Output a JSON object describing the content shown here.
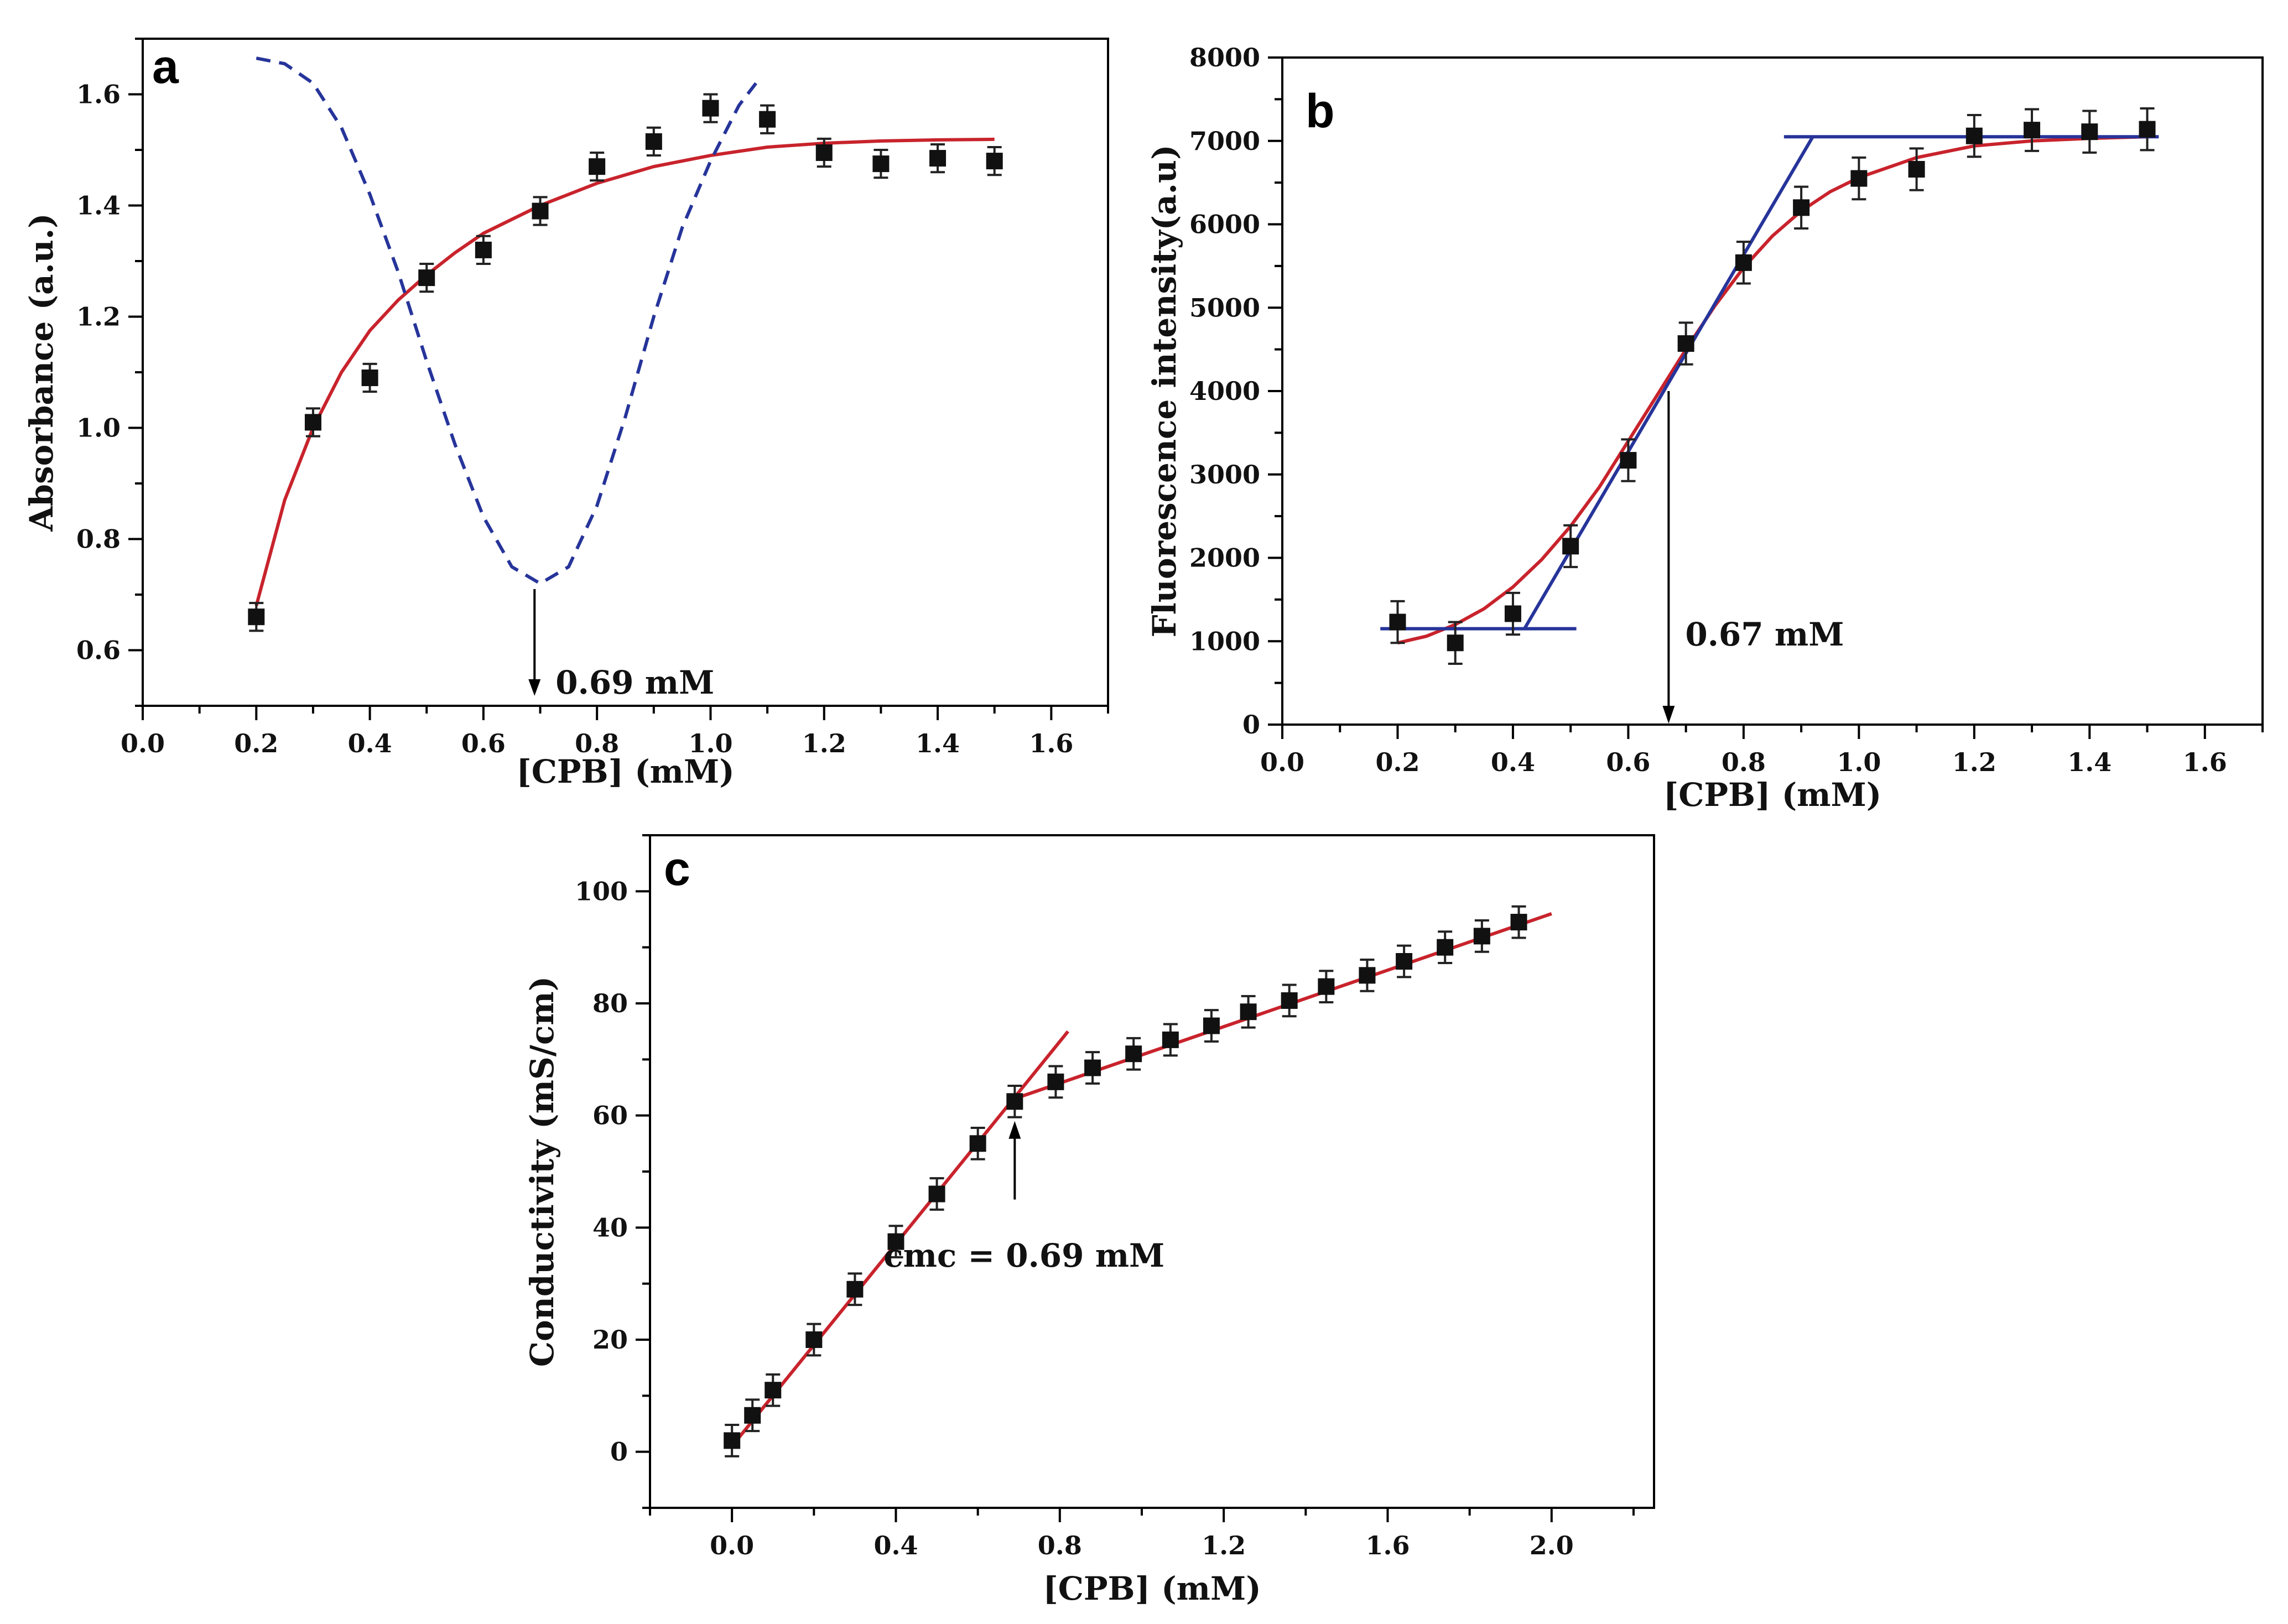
{
  "chart_data": [
    {
      "type": "scatter",
      "panel": "a",
      "xlabel": "[CPB] (mM)",
      "ylabel": "Absorbance (a.u.)",
      "xlim": [
        0.0,
        1.7
      ],
      "ylim": [
        0.5,
        1.7
      ],
      "xticks": [
        "0.0",
        "0.2",
        "0.4",
        "0.6",
        "0.8",
        "1.0",
        "1.2",
        "1.4",
        "1.6"
      ],
      "yticks": [
        "0.6",
        "0.8",
        "1.0",
        "1.2",
        "1.4",
        "1.6"
      ],
      "series": [
        {
          "name": "Absorbance",
          "marker": "square",
          "x": [
            0.2,
            0.3,
            0.4,
            0.5,
            0.6,
            0.7,
            0.8,
            0.9,
            1.0,
            1.1,
            1.2,
            1.3,
            1.4,
            1.5
          ],
          "values": [
            0.66,
            1.01,
            1.09,
            1.27,
            1.32,
            1.39,
            1.47,
            1.515,
            1.575,
            1.555,
            1.495,
            1.475,
            1.485,
            1.48
          ],
          "error": 0.025
        }
      ],
      "fit_lines": [
        {
          "name": "fit",
          "color": "#c8232c",
          "style": "solid",
          "x": [
            0.2,
            0.25,
            0.3,
            0.35,
            0.4,
            0.45,
            0.5,
            0.55,
            0.6,
            0.65,
            0.7,
            0.8,
            0.9,
            1.0,
            1.1,
            1.2,
            1.3,
            1.4,
            1.5
          ],
          "y": [
            0.68,
            0.87,
            1.0,
            1.1,
            1.175,
            1.23,
            1.275,
            1.315,
            1.35,
            1.375,
            1.4,
            1.44,
            1.47,
            1.49,
            1.505,
            1.512,
            1.516,
            1.518,
            1.519
          ]
        },
        {
          "name": "derivative",
          "color": "#26349a",
          "style": "dashed",
          "x": [
            0.2,
            0.25,
            0.3,
            0.35,
            0.4,
            0.45,
            0.5,
            0.55,
            0.6,
            0.65,
            0.7,
            0.75,
            0.8,
            0.85,
            0.9,
            0.95,
            1.0,
            1.05,
            1.08
          ],
          "y": [
            1.665,
            1.655,
            1.62,
            1.54,
            1.42,
            1.28,
            1.12,
            0.97,
            0.84,
            0.75,
            0.72,
            0.75,
            0.86,
            1.02,
            1.2,
            1.36,
            1.48,
            1.58,
            1.62
          ]
        }
      ],
      "annotation": {
        "text": "0.69 mM",
        "x": 0.69,
        "arrow_from": 0.71,
        "arrow_to": 0.5
      }
    },
    {
      "type": "scatter",
      "panel": "b",
      "xlabel": "[CPB] (mM)",
      "ylabel": "Fluorescence intensity(a.u)",
      "xlim": [
        0.0,
        1.7
      ],
      "ylim": [
        0,
        8000
      ],
      "xticks": [
        "0.0",
        "0.2",
        "0.4",
        "0.6",
        "0.8",
        "1.0",
        "1.2",
        "1.4",
        "1.6"
      ],
      "yticks": [
        "0",
        "1000",
        "2000",
        "3000",
        "4000",
        "5000",
        "6000",
        "7000",
        "8000"
      ],
      "series": [
        {
          "name": "Fluorescence",
          "marker": "square",
          "x": [
            0.2,
            0.3,
            0.4,
            0.5,
            0.6,
            0.7,
            0.8,
            0.9,
            1.0,
            1.1,
            1.2,
            1.3,
            1.4,
            1.5
          ],
          "values": [
            1230,
            980,
            1330,
            2140,
            3170,
            4570,
            5540,
            6200,
            6550,
            6660,
            7060,
            7130,
            7110,
            7140
          ],
          "error": 250
        }
      ],
      "fit_lines": [
        {
          "name": "sigmoid fit",
          "color": "#c8232c",
          "style": "solid",
          "x": [
            0.2,
            0.25,
            0.3,
            0.35,
            0.4,
            0.45,
            0.5,
            0.55,
            0.6,
            0.65,
            0.7,
            0.75,
            0.8,
            0.85,
            0.9,
            0.95,
            1.0,
            1.1,
            1.2,
            1.3,
            1.4,
            1.5
          ],
          "y": [
            980,
            1060,
            1200,
            1390,
            1650,
            1980,
            2380,
            2850,
            3400,
            3950,
            4500,
            5020,
            5480,
            5860,
            6160,
            6390,
            6560,
            6800,
            6940,
            7000,
            7030,
            7050
          ]
        },
        {
          "name": "low baseline",
          "color": "#26349a",
          "style": "solid",
          "x": [
            0.17,
            0.51
          ],
          "y": [
            1150,
            1150
          ]
        },
        {
          "name": "rising tangent",
          "color": "#26349a",
          "style": "solid",
          "x": [
            0.42,
            0.92
          ],
          "y": [
            1150,
            7050
          ]
        },
        {
          "name": "high plateau",
          "color": "#26349a",
          "style": "solid",
          "x": [
            0.87,
            1.52
          ],
          "y": [
            7050,
            7050
          ]
        }
      ],
      "annotation": {
        "text": "0.67 mM",
        "x": 0.67,
        "arrow_from": 4000,
        "arrow_to": 0
      }
    },
    {
      "type": "scatter",
      "panel": "c",
      "xlabel": "[CPB] (mM)",
      "ylabel": "Conductivity (mS/cm)",
      "xlim": [
        -0.2,
        2.25
      ],
      "ylim": [
        -10,
        110
      ],
      "xticks": [
        "0.0",
        "0.4",
        "0.8",
        "1.2",
        "1.6",
        "2.0"
      ],
      "yticks": [
        "0",
        "20",
        "40",
        "60",
        "80",
        "100"
      ],
      "series": [
        {
          "name": "Conductivity",
          "marker": "square",
          "x": [
            0.0,
            0.05,
            0.1,
            0.2,
            0.3,
            0.4,
            0.5,
            0.6,
            0.69,
            0.79,
            0.88,
            0.98,
            1.07,
            1.17,
            1.26,
            1.36,
            1.45,
            1.55,
            1.64,
            1.74,
            1.83,
            1.92
          ],
          "values": [
            2,
            6.5,
            11,
            20,
            29,
            37.5,
            46,
            55,
            62.5,
            66,
            68.5,
            71,
            73.5,
            76,
            78.5,
            80.5,
            83,
            85,
            87.5,
            90,
            92,
            94.5
          ],
          "error": 2.8
        }
      ],
      "fit_lines": [
        {
          "name": "pre-cmc fit",
          "color": "#c8232c",
          "style": "solid",
          "x": [
            0.0,
            0.82
          ],
          "y": [
            1,
            75
          ]
        },
        {
          "name": "post-cmc fit",
          "color": "#c8232c",
          "style": "solid",
          "x": [
            0.69,
            2.0
          ],
          "y": [
            63,
            96
          ]
        }
      ],
      "annotation": {
        "text": "cmc = 0.69 mM",
        "x": 0.69,
        "arrow_from": 45,
        "arrow_to": 59
      }
    }
  ],
  "colors": {
    "fit_red": "#c8232c",
    "fit_blue": "#26349a",
    "marker": "#111111"
  }
}
